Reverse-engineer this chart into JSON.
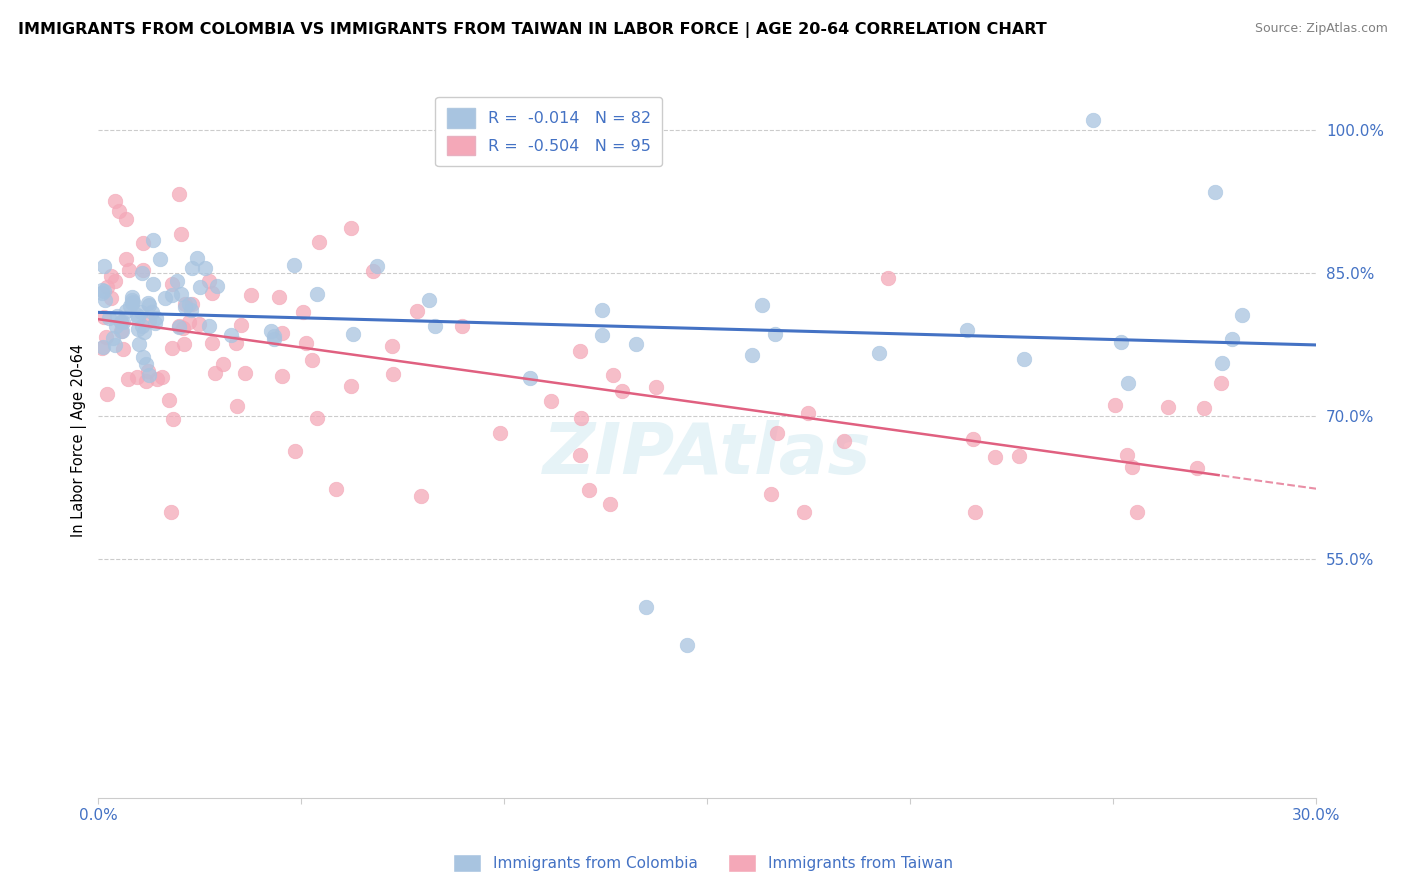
{
  "title": "IMMIGRANTS FROM COLOMBIA VS IMMIGRANTS FROM TAIWAN IN LABOR FORCE | AGE 20-64 CORRELATION CHART",
  "source": "Source: ZipAtlas.com",
  "xlim": [
    0.0,
    0.3
  ],
  "ylim": [
    0.3,
    1.05
  ],
  "ytick_positions": [
    0.55,
    0.7,
    0.85,
    1.0
  ],
  "ytick_labels": [
    "55.0%",
    "70.0%",
    "85.0%",
    "100.0%"
  ],
  "xtick_positions": [
    0.0,
    0.05,
    0.1,
    0.15,
    0.2,
    0.25,
    0.3
  ],
  "xtick_labels": [
    "0.0%",
    "",
    "",
    "",
    "",
    "",
    "30.0%"
  ],
  "colombia_color": "#a8c4e0",
  "taiwan_color": "#f4a8b8",
  "colombia_line_color": "#4472c4",
  "taiwan_line_color": "#e06080",
  "R_colombia": -0.014,
  "N_colombia": 82,
  "R_taiwan": -0.504,
  "N_taiwan": 95,
  "legend_label_colombia": "Immigrants from Colombia",
  "legend_label_taiwan": "Immigrants from Taiwan",
  "watermark": "ZIPAtlas",
  "tick_color": "#4472c4",
  "grid_color": "#cccccc",
  "title_fontsize": 11.5,
  "source_fontsize": 9,
  "tick_fontsize": 11,
  "ylabel": "In Labor Force | Age 20-64"
}
